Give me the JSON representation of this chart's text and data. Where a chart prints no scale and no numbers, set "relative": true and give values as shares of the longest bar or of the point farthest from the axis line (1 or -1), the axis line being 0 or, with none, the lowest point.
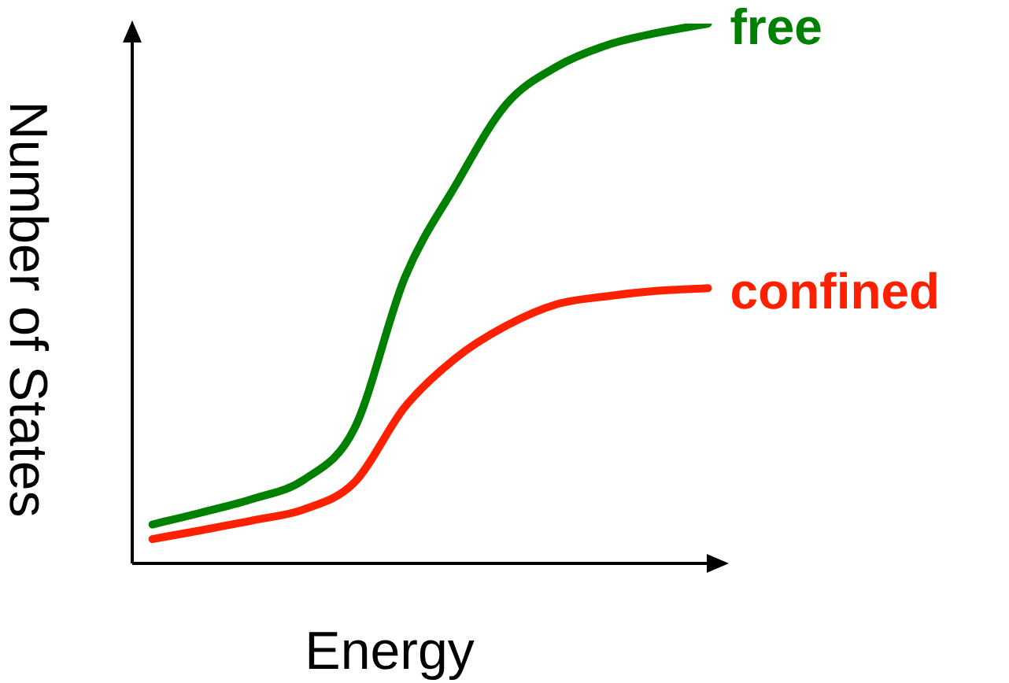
{
  "chart_data": {
    "type": "line",
    "xlabel": "Energy",
    "ylabel": "Number of States",
    "relative": true,
    "legend": false,
    "marker": "none",
    "categories": [
      null,
      null,
      null,
      null,
      null,
      null,
      null,
      null,
      null,
      null,
      null,
      null
    ],
    "series": [
      {
        "name": "free",
        "color": "#008000",
        "values": [
          0.072,
          0.095,
          0.12,
          0.155,
          0.25,
          0.53,
          0.7,
          0.85,
          0.92,
          0.96,
          0.983,
          1
        ]
      },
      {
        "name": "confined",
        "color": "#ff2000",
        "values": [
          0.045,
          0.062,
          0.08,
          0.1,
          0.15,
          0.29,
          0.38,
          0.44,
          0.48,
          0.495,
          0.505,
          0.51
        ]
      }
    ]
  }
}
